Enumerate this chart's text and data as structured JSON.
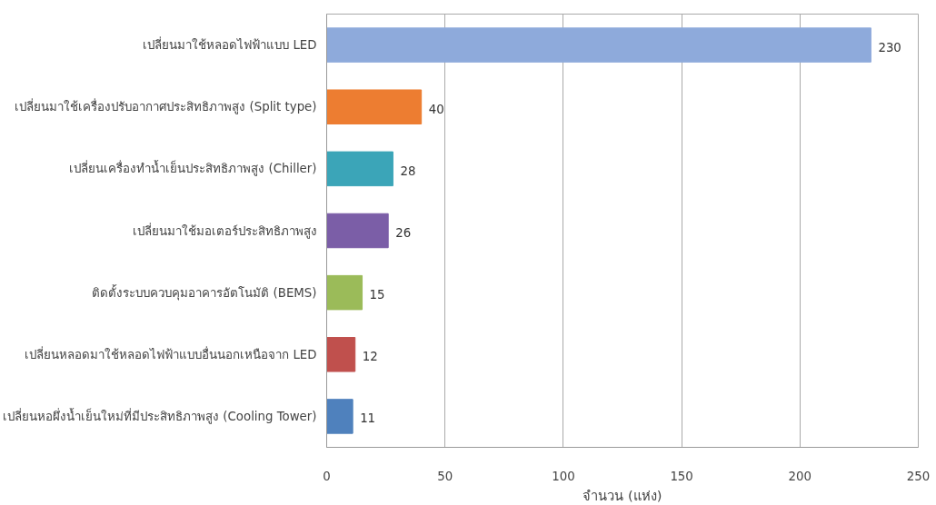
{
  "chart_data": {
    "type": "bar",
    "orientation": "horizontal",
    "categories": [
      "เปลี่ยนมาใช้หลอดไฟฟ้าแบบ LED",
      "เปลี่ยนมาใช้เครื่องปรับอากาศประสิทธิภาพสูง (Split type)",
      "เปลี่ยนเครื่องทำน้ำเย็นประสิทธิภาพสูง (Chiller)",
      "เปลี่ยนมาใช้มอเตอร์ประสิทธิภาพสูง",
      "ติดตั้งระบบควบคุมอาคารอัตโนมัติ (BEMS)",
      "เปลี่ยนหลอดมาใช้หลอดไฟฟ้าแบบอื่นนอกเหนือจาก LED",
      "เปลี่ยนหอผึ่งน้ำเย็นใหม่ที่มีประสิทธิภาพสูง (Cooling Tower)"
    ],
    "values": [
      230,
      40,
      28,
      26,
      15,
      12,
      11
    ],
    "colors": [
      "#8eaadb",
      "#ed7d31",
      "#3ba5b8",
      "#7b5ea7",
      "#9bbb59",
      "#c0504d",
      "#4f81bd"
    ],
    "xlabel": "จำนวน (แห่ง)",
    "xlim": [
      0,
      250
    ],
    "xticks": [
      0,
      50,
      100,
      150,
      200,
      250
    ],
    "grid": "x",
    "data_labels": true
  }
}
